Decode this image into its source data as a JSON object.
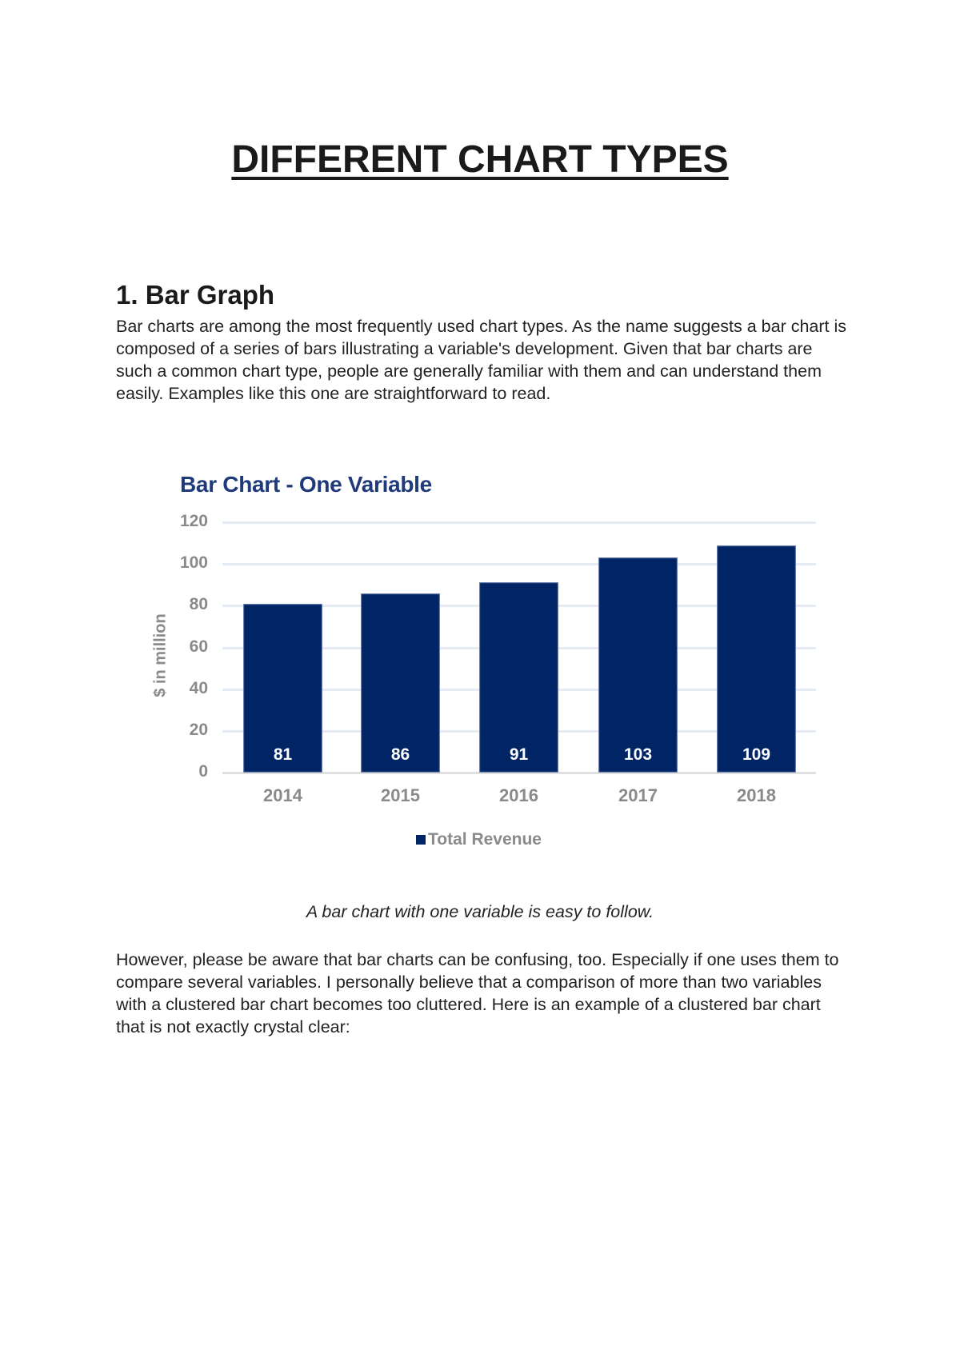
{
  "document": {
    "title": "DIFFERENT CHART TYPES",
    "section_heading": "1. Bar Graph",
    "paragraph_1": "Bar charts are among the most frequently used chart types. As the name suggests a bar chart is composed of a series of bars illustrating a variable's development. Given that bar charts are such a common chart type, people are generally familiar with them and can understand them easily. Examples like this one are straightforward to read.",
    "caption": "A bar chart with one variable is easy to follow.",
    "paragraph_2": "However, please be aware that bar charts can be confusing, too. Especially if one uses them to compare several variables. I personally believe that a comparison of more than two variables with a clustered bar chart becomes too cluttered. Here is an example of a clustered bar chart that is not exactly crystal clear:"
  },
  "colors": {
    "bar": "#012465",
    "chart_title": "#1f3a7a",
    "axis_text": "#8a8a8a",
    "gridline": "#e5ebf5"
  },
  "chart_data": {
    "type": "bar",
    "title": "Bar Chart - One Variable",
    "xlabel": "",
    "ylabel": "$ in million",
    "categories": [
      "2014",
      "2015",
      "2016",
      "2017",
      "2018"
    ],
    "values": [
      81,
      86,
      91,
      103,
      109
    ],
    "series": [
      {
        "name": "Total Revenue",
        "values": [
          81,
          86,
          91,
          103,
          109
        ]
      }
    ],
    "data_labels": [
      "81",
      "86",
      "91",
      "103",
      "109"
    ],
    "yticks": [
      "0",
      "20",
      "40",
      "60",
      "80",
      "100",
      "120"
    ],
    "ylim": [
      0,
      120
    ],
    "grid": true,
    "legend": {
      "position": "bottom",
      "entries": [
        "Total Revenue"
      ]
    }
  }
}
